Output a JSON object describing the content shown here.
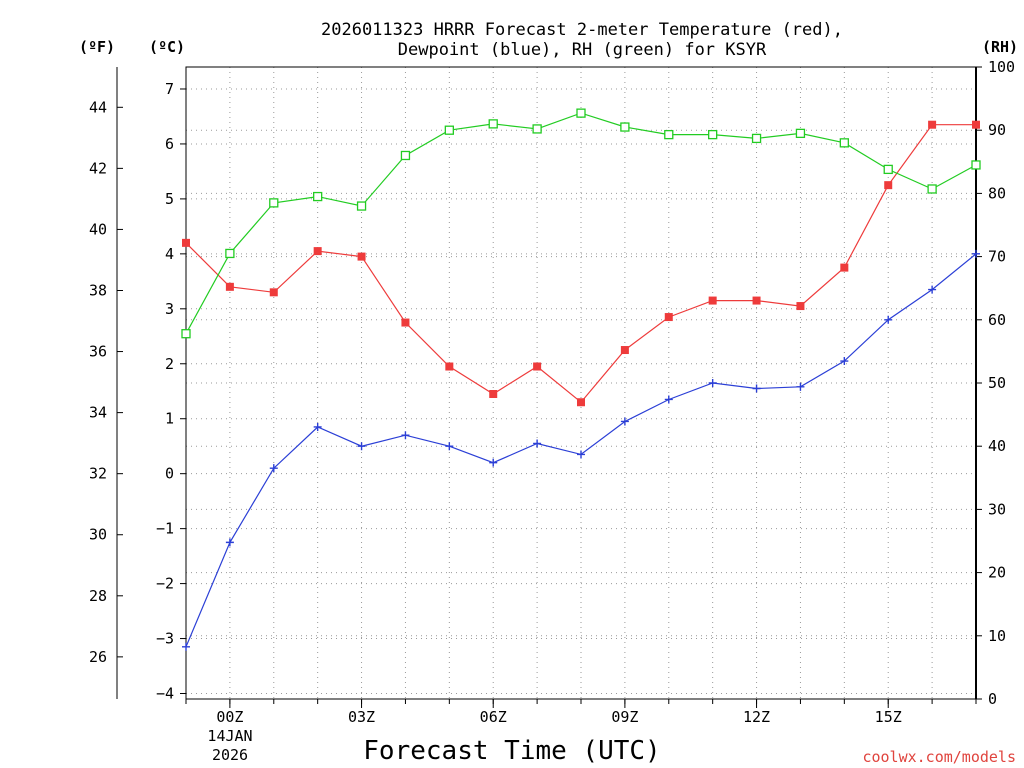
{
  "chart_data": {
    "type": "line",
    "title_lines": [
      "2026011323 HRRR Forecast 2-meter Temperature (red),",
      "Dewpoint (blue), RH (green) for KSYR"
    ],
    "xlabel": "Forecast Time (UTC)",
    "units": {
      "fahrenheit": "(ºF)",
      "celsius": "(ºC)",
      "rh": "(RH)"
    },
    "x_range": [
      -1,
      17
    ],
    "x": [
      -1,
      0,
      1,
      2,
      3,
      4,
      5,
      6,
      7,
      8,
      9,
      10,
      11,
      12,
      13,
      14,
      15,
      16,
      17
    ],
    "x_ticks": [
      {
        "x": 0,
        "label": "00Z"
      },
      {
        "x": 3,
        "label": "03Z"
      },
      {
        "x": 6,
        "label": "06Z"
      },
      {
        "x": 9,
        "label": "09Z"
      },
      {
        "x": 12,
        "label": "12Z"
      },
      {
        "x": 15,
        "label": "15Z"
      }
    ],
    "date_label": [
      "14JAN",
      "2026"
    ],
    "y_left_c": {
      "range": [
        -4.1,
        7.4
      ],
      "ticks": [
        -4,
        -3,
        -2,
        -1,
        0,
        1,
        2,
        3,
        4,
        5,
        6,
        7
      ]
    },
    "y_left_f": {
      "ticks": [
        26,
        28,
        30,
        32,
        34,
        36,
        38,
        40,
        42,
        44
      ]
    },
    "y_right_rh": {
      "range": [
        0,
        100
      ],
      "ticks": [
        0,
        10,
        20,
        30,
        40,
        50,
        60,
        70,
        80,
        90,
        100
      ]
    },
    "series": [
      {
        "name": "Temperature",
        "units": "C",
        "color": "#ee3b3b",
        "marker": "filled-square",
        "values": [
          4.2,
          3.4,
          3.3,
          4.05,
          3.95,
          2.75,
          1.95,
          1.45,
          1.95,
          1.3,
          2.25,
          2.85,
          3.15,
          3.15,
          3.05,
          3.75,
          5.25,
          6.35,
          6.35
        ]
      },
      {
        "name": "Dewpoint",
        "units": "C",
        "color": "#2b3fd6",
        "marker": "plus",
        "values": [
          -3.15,
          -1.25,
          0.1,
          0.85,
          0.5,
          0.7,
          0.5,
          0.2,
          0.55,
          0.35,
          0.95,
          1.35,
          1.65,
          1.55,
          1.58,
          2.05,
          2.8,
          3.35,
          4.0
        ]
      },
      {
        "name": "Relative Humidity",
        "units": "%",
        "color": "#22cc22",
        "marker": "open-square",
        "values": [
          57.8,
          70.5,
          78.5,
          79.5,
          78.0,
          86.0,
          90.0,
          91.0,
          90.2,
          92.7,
          90.5,
          89.3,
          89.3,
          88.7,
          89.5,
          88.0,
          83.8,
          80.7,
          84.5
        ]
      }
    ]
  },
  "credit": "coolwx.com/models"
}
